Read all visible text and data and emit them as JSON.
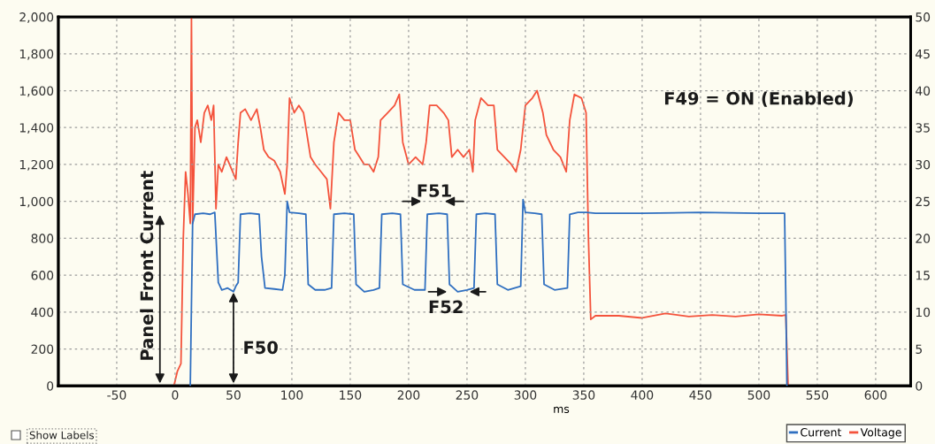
{
  "chart_data": {
    "type": "line",
    "xlabel": "ms",
    "xlim": [
      -100,
      630
    ],
    "xticks": [
      -50,
      0,
      50,
      100,
      150,
      200,
      250,
      300,
      350,
      400,
      450,
      500,
      550,
      600
    ],
    "ylim": [
      0,
      2000
    ],
    "yticks": [
      0,
      200,
      400,
      600,
      800,
      {
        "value": 1000,
        "label": "1,000"
      },
      {
        "value": 1200,
        "label": "1,200"
      },
      {
        "value": 1400,
        "label": "1,400"
      },
      {
        "value": 1600,
        "label": "1,600"
      },
      {
        "value": 1800,
        "label": "1,800"
      },
      {
        "value": 2000,
        "label": "2,000"
      }
    ],
    "y2lim": [
      0,
      50
    ],
    "y2ticks": [
      0,
      5,
      10,
      15,
      20,
      25,
      30,
      35,
      40,
      45,
      50
    ],
    "grid": true,
    "legend": "bottom right",
    "marker": "none",
    "line_style": "solid",
    "annotations": [
      "Panel Front Current",
      "F50",
      "F51",
      "F52",
      "F49 = ON (Enabled)",
      "Show Labels"
    ],
    "series": [
      {
        "name": "Current",
        "color": "#2f6fc0",
        "x": [
          13,
          15,
          17,
          24,
          30,
          34,
          37,
          40,
          45,
          50,
          52,
          54,
          56,
          64,
          72,
          74,
          77,
          85,
          92,
          94,
          96,
          98,
          106,
          112,
          114,
          120,
          128,
          134,
          136,
          145,
          153,
          155,
          162,
          170,
          175,
          177,
          186,
          193,
          195,
          205,
          214,
          216,
          226,
          233,
          235,
          242,
          250,
          256,
          258,
          266,
          274,
          276,
          285,
          296,
          298,
          300,
          308,
          314,
          316,
          325,
          336,
          338,
          345,
          352,
          360,
          400,
          450,
          500,
          522,
          523,
          524
        ],
        "values": [
          0,
          880,
          930,
          935,
          930,
          940,
          560,
          520,
          530,
          510,
          540,
          560,
          930,
          935,
          930,
          700,
          530,
          525,
          520,
          600,
          1000,
          940,
          935,
          930,
          550,
          520,
          520,
          530,
          930,
          935,
          930,
          550,
          510,
          520,
          530,
          930,
          935,
          930,
          550,
          520,
          520,
          930,
          935,
          930,
          550,
          510,
          520,
          530,
          930,
          935,
          930,
          550,
          520,
          540,
          1010,
          940,
          935,
          930,
          550,
          520,
          530,
          930,
          940,
          940,
          935,
          935,
          940,
          935,
          935,
          500,
          0
        ]
      },
      {
        "name": "Voltage",
        "color": "#f4533c",
        "axis": "y2",
        "x": [
          -1,
          2,
          5,
          7,
          9,
          11,
          13,
          14,
          15,
          17,
          19,
          22,
          25,
          28,
          31,
          33,
          35,
          37,
          40,
          44,
          48,
          52,
          54,
          56,
          60,
          65,
          70,
          73,
          76,
          80,
          85,
          90,
          94,
          96,
          98,
          102,
          106,
          110,
          113,
          116,
          120,
          125,
          130,
          133,
          136,
          140,
          145,
          150,
          154,
          158,
          162,
          166,
          170,
          174,
          176,
          182,
          188,
          192,
          195,
          200,
          206,
          212,
          215,
          218,
          224,
          230,
          234,
          237,
          242,
          247,
          252,
          255,
          257,
          262,
          268,
          273,
          276,
          282,
          288,
          292,
          296,
          300,
          306,
          310,
          315,
          318,
          324,
          330,
          335,
          338,
          342,
          348,
          352,
          354,
          356,
          360,
          380,
          400,
          420,
          440,
          460,
          480,
          500,
          520,
          523,
          524,
          525
        ],
        "values": [
          0,
          2,
          3,
          20,
          29,
          26,
          22,
          50,
          22,
          35,
          36,
          33,
          37,
          38,
          36,
          38,
          24,
          30,
          29,
          31,
          29.5,
          28,
          33,
          37,
          37.5,
          36,
          37.5,
          35,
          32,
          31,
          30.5,
          29,
          26,
          30,
          39,
          37,
          38,
          37,
          34,
          31,
          30,
          29,
          28,
          24,
          33,
          37,
          36,
          36,
          32,
          31,
          30,
          30,
          29,
          31,
          36,
          37,
          38,
          39.5,
          33,
          30,
          31,
          30,
          33,
          38,
          38,
          37,
          36,
          31,
          32,
          31,
          32,
          29,
          36,
          39,
          38,
          38,
          32,
          31,
          30,
          29,
          32,
          38,
          39,
          40,
          37,
          34,
          32,
          31,
          29,
          36,
          39.5,
          39,
          37,
          20,
          9,
          9.5,
          9.5,
          9.2,
          9.8,
          9.4,
          9.6,
          9.4,
          9.7,
          9.5,
          9.6,
          5,
          0
        ]
      }
    ]
  }
}
